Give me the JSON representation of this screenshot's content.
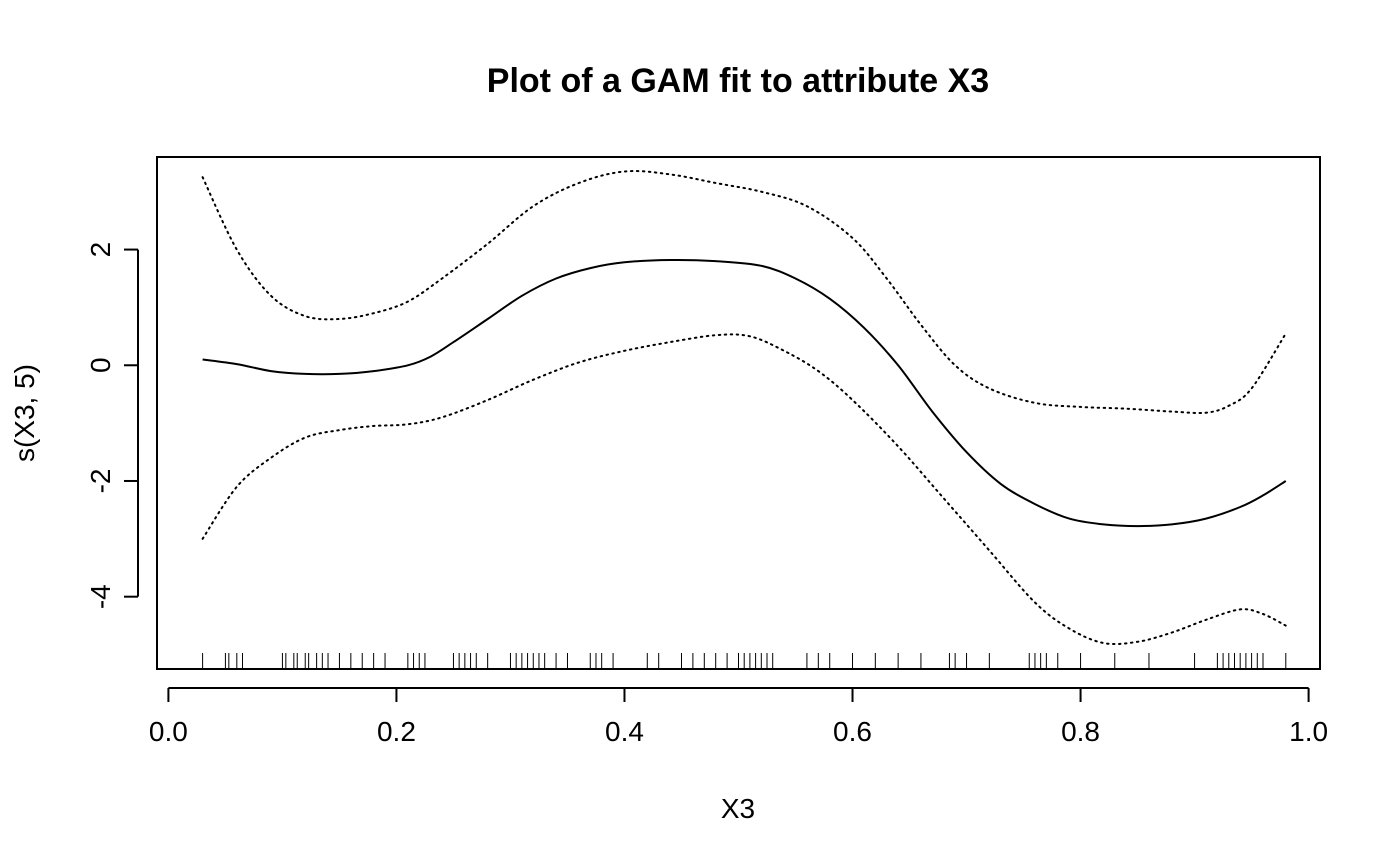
{
  "chart_data": {
    "type": "line",
    "title": "Plot of a GAM fit to attribute X3",
    "xlabel": "X3",
    "ylabel": "s(X3, 5)",
    "xlim": [
      -0.01,
      1.01
    ],
    "ylim": [
      -5.25,
      3.6
    ],
    "x_ticks": [
      "0.0",
      "0.2",
      "0.4",
      "0.6",
      "0.8",
      "1.0"
    ],
    "y_ticks": [
      "-4",
      "-2",
      "0",
      "2"
    ],
    "grid": false,
    "series": [
      {
        "line_style": "solid",
        "points": [
          [
            0.03,
            0.1
          ],
          [
            0.06,
            0.02
          ],
          [
            0.09,
            -0.1
          ],
          [
            0.12,
            -0.15
          ],
          [
            0.15,
            -0.15
          ],
          [
            0.18,
            -0.1
          ],
          [
            0.21,
            0.0
          ],
          [
            0.23,
            0.15
          ],
          [
            0.25,
            0.4
          ],
          [
            0.28,
            0.8
          ],
          [
            0.31,
            1.2
          ],
          [
            0.34,
            1.5
          ],
          [
            0.37,
            1.68
          ],
          [
            0.4,
            1.78
          ],
          [
            0.44,
            1.82
          ],
          [
            0.48,
            1.8
          ],
          [
            0.52,
            1.72
          ],
          [
            0.55,
            1.5
          ],
          [
            0.58,
            1.15
          ],
          [
            0.61,
            0.65
          ],
          [
            0.64,
            0.0
          ],
          [
            0.67,
            -0.8
          ],
          [
            0.7,
            -1.5
          ],
          [
            0.73,
            -2.05
          ],
          [
            0.76,
            -2.4
          ],
          [
            0.79,
            -2.65
          ],
          [
            0.82,
            -2.75
          ],
          [
            0.85,
            -2.78
          ],
          [
            0.88,
            -2.75
          ],
          [
            0.91,
            -2.65
          ],
          [
            0.94,
            -2.45
          ],
          [
            0.96,
            -2.25
          ],
          [
            0.98,
            -2.0
          ]
        ]
      },
      {
        "line_style": "dotted",
        "points": [
          [
            0.03,
            3.25
          ],
          [
            0.06,
            2.0
          ],
          [
            0.09,
            1.2
          ],
          [
            0.12,
            0.85
          ],
          [
            0.15,
            0.8
          ],
          [
            0.18,
            0.9
          ],
          [
            0.21,
            1.1
          ],
          [
            0.24,
            1.5
          ],
          [
            0.28,
            2.1
          ],
          [
            0.32,
            2.75
          ],
          [
            0.36,
            3.15
          ],
          [
            0.4,
            3.35
          ],
          [
            0.44,
            3.3
          ],
          [
            0.48,
            3.15
          ],
          [
            0.52,
            3.0
          ],
          [
            0.56,
            2.75
          ],
          [
            0.6,
            2.2
          ],
          [
            0.63,
            1.5
          ],
          [
            0.66,
            0.7
          ],
          [
            0.69,
            0.0
          ],
          [
            0.72,
            -0.4
          ],
          [
            0.76,
            -0.65
          ],
          [
            0.8,
            -0.72
          ],
          [
            0.84,
            -0.75
          ],
          [
            0.88,
            -0.8
          ],
          [
            0.91,
            -0.82
          ],
          [
            0.93,
            -0.7
          ],
          [
            0.95,
            -0.4
          ],
          [
            0.98,
            0.55
          ]
        ]
      },
      {
        "line_style": "dotted",
        "points": [
          [
            0.03,
            -3.0
          ],
          [
            0.06,
            -2.1
          ],
          [
            0.09,
            -1.6
          ],
          [
            0.12,
            -1.25
          ],
          [
            0.15,
            -1.12
          ],
          [
            0.18,
            -1.05
          ],
          [
            0.21,
            -1.02
          ],
          [
            0.24,
            -0.9
          ],
          [
            0.28,
            -0.6
          ],
          [
            0.32,
            -0.25
          ],
          [
            0.36,
            0.05
          ],
          [
            0.4,
            0.25
          ],
          [
            0.44,
            0.4
          ],
          [
            0.48,
            0.52
          ],
          [
            0.51,
            0.5
          ],
          [
            0.54,
            0.25
          ],
          [
            0.57,
            -0.1
          ],
          [
            0.6,
            -0.6
          ],
          [
            0.64,
            -1.4
          ],
          [
            0.68,
            -2.3
          ],
          [
            0.72,
            -3.2
          ],
          [
            0.76,
            -4.1
          ],
          [
            0.79,
            -4.55
          ],
          [
            0.82,
            -4.8
          ],
          [
            0.85,
            -4.78
          ],
          [
            0.88,
            -4.62
          ],
          [
            0.91,
            -4.4
          ],
          [
            0.94,
            -4.22
          ],
          [
            0.96,
            -4.3
          ],
          [
            0.98,
            -4.5
          ]
        ]
      }
    ],
    "rug": [
      0.03,
      0.05,
      0.053,
      0.06,
      0.065,
      0.1,
      0.103,
      0.11,
      0.113,
      0.12,
      0.123,
      0.13,
      0.135,
      0.14,
      0.15,
      0.16,
      0.17,
      0.18,
      0.19,
      0.21,
      0.215,
      0.22,
      0.225,
      0.25,
      0.255,
      0.26,
      0.265,
      0.27,
      0.28,
      0.3,
      0.305,
      0.31,
      0.315,
      0.32,
      0.325,
      0.33,
      0.34,
      0.35,
      0.37,
      0.375,
      0.38,
      0.39,
      0.42,
      0.43,
      0.45,
      0.46,
      0.47,
      0.48,
      0.49,
      0.5,
      0.505,
      0.51,
      0.515,
      0.52,
      0.525,
      0.53,
      0.56,
      0.57,
      0.58,
      0.6,
      0.62,
      0.64,
      0.66,
      0.685,
      0.69,
      0.7,
      0.72,
      0.755,
      0.76,
      0.765,
      0.77,
      0.78,
      0.8,
      0.83,
      0.86,
      0.9,
      0.92,
      0.925,
      0.93,
      0.935,
      0.94,
      0.945,
      0.95,
      0.955,
      0.96,
      0.98
    ]
  }
}
